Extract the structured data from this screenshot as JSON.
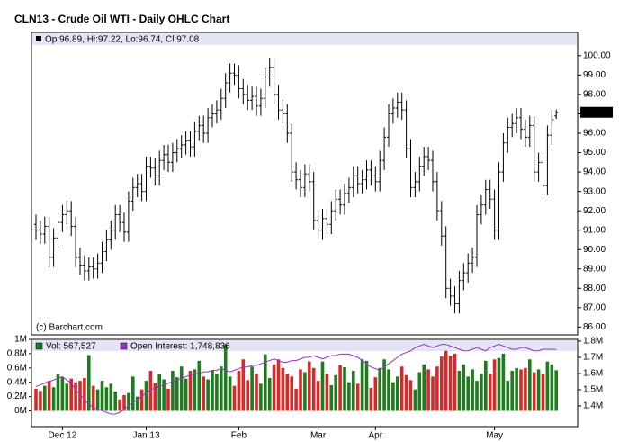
{
  "chart_data": [
    {
      "type": "ohlc",
      "title": "CLN13 - Crude Oil WTI - Daily OHLC Chart",
      "info": "Op:96.89, Hi:97.22, Lo:96.74, Cl:97.08",
      "credit": "(c) Barchart.com",
      "color": "#000000",
      "last_color": "#000000",
      "grid": false,
      "ylim": [
        85.6,
        101.2
      ],
      "yticks": [
        {
          "value": 86,
          "label": "86.00"
        },
        {
          "value": 87,
          "label": "87.00"
        },
        {
          "value": 88,
          "label": "88.00"
        },
        {
          "value": 89,
          "label": "89.00"
        },
        {
          "value": 90,
          "label": "90.00"
        },
        {
          "value": 91,
          "label": "91.00"
        },
        {
          "value": 92,
          "label": "92.00"
        },
        {
          "value": 93,
          "label": "93.00"
        },
        {
          "value": 94,
          "label": "94.00"
        },
        {
          "value": 95,
          "label": "95.00"
        },
        {
          "value": 96,
          "label": "96.00"
        },
        {
          "value": 97,
          "label": "97.00"
        },
        {
          "value": 98,
          "label": "98.00"
        },
        {
          "value": 99,
          "label": "99.00"
        },
        {
          "value": 100,
          "label": "100.00"
        }
      ],
      "open": [
        91.3,
        91.0,
        90.8,
        91.2,
        89.6,
        90.6,
        91.4,
        91.8,
        92.0,
        91.2,
        89.6,
        89.2,
        88.9,
        89.1,
        89.0,
        89.3,
        89.9,
        90.5,
        91.0,
        91.8,
        91.4,
        90.9,
        92.5,
        93.2,
        93.4,
        93.0,
        94.3,
        94.2,
        93.8,
        94.6,
        94.9,
        94.5,
        95.0,
        95.2,
        95.4,
        95.6,
        95.3,
        96.1,
        96.4,
        96.0,
        96.8,
        97.0,
        97.2,
        97.8,
        98.6,
        99.1,
        99.0,
        98.3,
        98.0,
        97.7,
        97.9,
        97.4,
        97.8,
        98.9,
        99.4,
        98.0,
        97.2,
        97.0,
        96.0,
        94.0,
        93.6,
        93.2,
        93.9,
        93.5,
        91.5,
        91.0,
        91.6,
        91.3,
        92.0,
        92.6,
        92.3,
        92.9,
        93.2,
        93.8,
        93.4,
        93.6,
        94.1,
        93.8,
        93.5,
        94.6,
        95.8,
        97.0,
        97.3,
        97.6,
        97.2,
        95.2,
        93.2,
        93.5,
        94.3,
        94.8,
        94.6,
        93.5,
        92.0,
        90.7,
        88.0,
        87.6,
        87.2,
        88.4,
        88.8,
        89.3,
        89.6,
        91.8,
        92.3,
        93.1,
        92.6,
        91.0,
        94.0,
        95.5,
        96.3,
        96.5,
        96.8,
        96.2,
        95.8,
        96.4,
        94.0,
        94.5,
        93.3,
        95.9,
        96.89
      ],
      "high": [
        91.8,
        91.5,
        91.7,
        91.7,
        91.1,
        91.9,
        92.3,
        92.5,
        92.5,
        91.7,
        90.1,
        89.7,
        89.6,
        89.6,
        89.8,
        90.4,
        91.0,
        91.5,
        92.3,
        92.3,
        91.9,
        93.0,
        93.7,
        93.9,
        93.9,
        94.8,
        94.8,
        94.7,
        95.1,
        95.4,
        95.4,
        95.5,
        95.7,
        95.9,
        96.1,
        96.1,
        96.6,
        96.9,
        96.9,
        97.3,
        97.5,
        97.7,
        98.3,
        99.1,
        99.6,
        99.6,
        99.5,
        98.8,
        98.5,
        98.4,
        98.4,
        98.3,
        99.4,
        99.9,
        99.9,
        98.5,
        97.7,
        97.5,
        96.5,
        94.5,
        94.1,
        94.4,
        94.4,
        94.0,
        92.0,
        92.1,
        92.1,
        92.5,
        93.1,
        93.1,
        93.4,
        93.7,
        94.3,
        94.3,
        94.1,
        94.6,
        94.6,
        94.3,
        95.1,
        96.3,
        97.5,
        97.8,
        98.1,
        98.1,
        97.7,
        95.7,
        94.0,
        94.8,
        95.3,
        95.3,
        95.1,
        94.0,
        92.5,
        91.2,
        88.5,
        88.1,
        88.9,
        89.3,
        89.8,
        90.1,
        92.3,
        92.8,
        93.6,
        93.6,
        93.1,
        94.5,
        96.0,
        96.8,
        97.0,
        97.3,
        97.3,
        96.7,
        96.9,
        96.9,
        95.0,
        95.0,
        96.4,
        97.2,
        97.22
      ],
      "low": [
        90.5,
        90.3,
        90.3,
        89.1,
        89.1,
        90.1,
        90.9,
        91.3,
        90.7,
        89.1,
        88.7,
        88.4,
        88.4,
        88.5,
        88.5,
        88.8,
        89.4,
        90.0,
        90.5,
        90.9,
        90.4,
        90.4,
        92.0,
        92.7,
        92.5,
        92.5,
        93.7,
        93.3,
        93.3,
        94.1,
        94.0,
        94.0,
        94.5,
        94.7,
        94.9,
        94.8,
        94.8,
        95.6,
        95.5,
        95.5,
        96.3,
        96.5,
        96.7,
        97.3,
        98.1,
        98.5,
        97.8,
        97.5,
        97.2,
        97.2,
        96.9,
        96.9,
        97.3,
        98.4,
        97.5,
        96.7,
        96.5,
        95.5,
        93.5,
        93.1,
        92.7,
        92.7,
        93.0,
        91.0,
        90.5,
        90.5,
        90.8,
        90.8,
        91.5,
        91.8,
        91.8,
        92.4,
        92.7,
        92.9,
        92.9,
        93.1,
        93.3,
        93.0,
        93.0,
        94.1,
        95.3,
        96.5,
        96.8,
        96.7,
        94.7,
        92.7,
        92.7,
        93.0,
        93.8,
        94.1,
        93.0,
        91.5,
        90.2,
        87.5,
        87.1,
        86.7,
        86.7,
        87.9,
        88.3,
        88.8,
        89.1,
        91.3,
        91.8,
        92.1,
        90.5,
        90.5,
        93.5,
        95.0,
        95.8,
        96.0,
        95.7,
        95.3,
        95.3,
        93.5,
        93.5,
        92.8,
        92.8,
        95.4,
        96.74
      ],
      "close": [
        91.0,
        90.8,
        91.2,
        89.6,
        90.6,
        91.4,
        91.8,
        92.0,
        91.2,
        89.6,
        89.2,
        88.9,
        89.1,
        89.0,
        89.3,
        89.9,
        90.5,
        91.0,
        91.8,
        91.4,
        90.9,
        92.5,
        93.2,
        93.4,
        93.0,
        94.3,
        94.2,
        93.8,
        94.6,
        94.9,
        94.5,
        95.0,
        95.2,
        95.4,
        95.6,
        95.3,
        96.1,
        96.4,
        96.0,
        96.8,
        97.0,
        97.2,
        97.8,
        98.6,
        99.1,
        99.0,
        98.3,
        98.0,
        97.7,
        97.9,
        97.4,
        97.8,
        98.9,
        99.4,
        98.0,
        97.2,
        97.0,
        96.0,
        94.0,
        93.6,
        93.2,
        93.9,
        93.5,
        91.5,
        91.0,
        91.6,
        91.3,
        92.0,
        92.6,
        92.3,
        92.9,
        93.2,
        93.8,
        93.4,
        93.6,
        94.1,
        93.8,
        93.5,
        94.6,
        95.8,
        97.0,
        97.3,
        97.6,
        97.2,
        95.2,
        93.2,
        93.5,
        94.3,
        94.8,
        94.6,
        93.5,
        92.0,
        90.7,
        88.0,
        87.6,
        87.2,
        88.4,
        88.8,
        89.3,
        89.6,
        91.8,
        92.3,
        93.1,
        92.6,
        91.0,
        94.0,
        95.5,
        96.3,
        96.5,
        96.8,
        96.2,
        95.8,
        96.4,
        94.0,
        94.5,
        93.3,
        95.9,
        96.7,
        97.08
      ]
    },
    {
      "type": "bar",
      "up_color": "#1e7b1e",
      "down_color": "#d62a2a",
      "categories": [
        null,
        null,
        null,
        null,
        null,
        null,
        "Dec 12",
        null,
        null,
        null,
        null,
        null,
        null,
        null,
        null,
        null,
        null,
        null,
        null,
        null,
        null,
        null,
        null,
        null,
        null,
        "Jan 13",
        null,
        null,
        null,
        null,
        null,
        null,
        null,
        null,
        null,
        null,
        null,
        null,
        null,
        null,
        null,
        null,
        null,
        null,
        null,
        null,
        "Feb",
        null,
        null,
        null,
        null,
        null,
        null,
        null,
        null,
        null,
        null,
        null,
        null,
        null,
        null,
        null,
        null,
        null,
        "Mar",
        null,
        null,
        null,
        null,
        null,
        null,
        null,
        null,
        null,
        null,
        null,
        null,
        "Apr",
        null,
        null,
        null,
        null,
        null,
        null,
        null,
        null,
        null,
        null,
        null,
        null,
        null,
        null,
        null,
        null,
        null,
        null,
        null,
        null,
        null,
        null,
        null,
        null,
        null,
        null,
        "May",
        null,
        null,
        null,
        null,
        null,
        null,
        null,
        null,
        null,
        null,
        null,
        null,
        null,
        null
      ],
      "ylim": [
        -220000,
        1000000
      ],
      "yticks": [
        {
          "value": 0,
          "label": "0M"
        },
        {
          "value": 200000,
          "label": "0.2M"
        },
        {
          "value": 400000,
          "label": "0.4M"
        },
        {
          "value": 600000,
          "label": "0.6M"
        },
        {
          "value": 800000,
          "label": "0.8M"
        },
        {
          "value": 1000000,
          "label": "1M"
        }
      ],
      "y2lim": [
        1272000,
        1811000
      ],
      "y2ticks": [
        {
          "value": 1400000,
          "label": "1.4M"
        },
        {
          "value": 1500000,
          "label": "1.5M"
        },
        {
          "value": 1600000,
          "label": "1.6M"
        },
        {
          "value": 1700000,
          "label": "1.7M"
        },
        {
          "value": 1800000,
          "label": "1.8M"
        }
      ],
      "series": [
        {
          "name": "Vol: 567,527",
          "color": "#1e7b1e",
          "values": [
            310000,
            280000,
            350000,
            420000,
            330000,
            510000,
            470000,
            380000,
            450000,
            400000,
            420000,
            460000,
            780000,
            350000,
            300000,
            420000,
            330000,
            380000,
            270000,
            160000,
            220000,
            250000,
            480000,
            200000,
            300000,
            420000,
            560000,
            390000,
            510000,
            440000,
            310000,
            560000,
            470000,
            620000,
            450000,
            560000,
            580000,
            700000,
            480000,
            440000,
            570000,
            520000,
            620000,
            930000,
            480000,
            350000,
            560000,
            720000,
            430000,
            620000,
            520000,
            380000,
            790000,
            460000,
            650000,
            720000,
            600000,
            520000,
            480000,
            310000,
            580000,
            540000,
            690000,
            600000,
            420000,
            690000,
            520000,
            360000,
            500000,
            640000,
            610000,
            400000,
            560000,
            380000,
            720000,
            700000,
            320000,
            470000,
            600000,
            720000,
            580000,
            400000,
            480000,
            620000,
            500000,
            430000,
            300000,
            540000,
            650000,
            580000,
            480000,
            620000,
            760000,
            840000,
            770000,
            800000,
            560000,
            650000,
            480000,
            580000,
            420000,
            520000,
            700000,
            520000,
            720000,
            740000,
            800000,
            420000,
            560000,
            600000,
            580000,
            600000,
            720000,
            540000,
            580000,
            510000,
            690000,
            650000,
            567527
          ]
        },
        {
          "name": "Open Interest: 1,748,836",
          "color": "#9933cc",
          "axis": "y2",
          "values": [
            1520000,
            1530000,
            1540000,
            1550000,
            1560000,
            1570000,
            1580000,
            1560000,
            1540000,
            1500000,
            1470000,
            1440000,
            1410000,
            1390000,
            1380000,
            1370000,
            1360000,
            1350000,
            1350000,
            1360000,
            1380000,
            1400000,
            1420000,
            1440000,
            1460000,
            1480000,
            1500000,
            1510000,
            1520000,
            1530000,
            1540000,
            1550000,
            1560000,
            1570000,
            1580000,
            1590000,
            1600000,
            1600000,
            1610000,
            1610000,
            1620000,
            1620000,
            1630000,
            1620000,
            1610000,
            1620000,
            1630000,
            1640000,
            1640000,
            1650000,
            1650000,
            1660000,
            1670000,
            1680000,
            1690000,
            1680000,
            1670000,
            1670000,
            1680000,
            1680000,
            1690000,
            1700000,
            1700000,
            1710000,
            1700000,
            1690000,
            1700000,
            1710000,
            1710000,
            1720000,
            1720000,
            1720000,
            1710000,
            1700000,
            1680000,
            1660000,
            1640000,
            1630000,
            1620000,
            1640000,
            1660000,
            1680000,
            1700000,
            1720000,
            1730000,
            1740000,
            1760000,
            1770000,
            1780000,
            1770000,
            1760000,
            1770000,
            1780000,
            1780000,
            1770000,
            1760000,
            1750000,
            1740000,
            1740000,
            1750000,
            1760000,
            1750000,
            1740000,
            1760000,
            1770000,
            1780000,
            1770000,
            1760000,
            1750000,
            1750000,
            1760000,
            1760000,
            1750000,
            1740000,
            1740000,
            1750000,
            1750000,
            1750000,
            1748836
          ]
        }
      ]
    }
  ]
}
